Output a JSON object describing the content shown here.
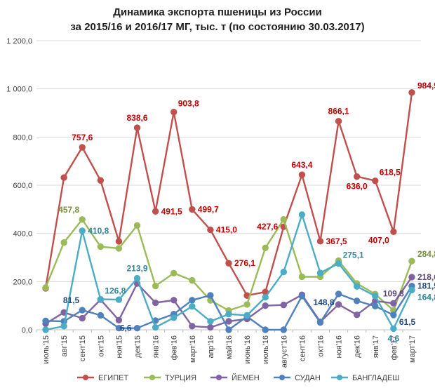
{
  "chart_data": {
    "type": "line",
    "title": "Динамика экспорта пшеницы из России",
    "subtitle": "за 2015/16 и 2016/17 МГ, тыс. т (по состоянию 30.03.2017)",
    "ylim": [
      0,
      1200
    ],
    "yticks": [
      "0,0",
      "200,0",
      "400,0",
      "600,0",
      "800,0",
      "1 000,0",
      "1 200,0"
    ],
    "ytick_values": [
      0,
      200,
      400,
      600,
      800,
      1000,
      1200
    ],
    "categories": [
      "июль'15",
      "авг'15",
      "сент'15",
      "окт'15",
      "ноя'15",
      "дек'15",
      "янв'16",
      "фев'16",
      "март'16",
      "апр'16",
      "май'16",
      "июнь'16",
      "июль'16",
      "август'16",
      "сент'16",
      "окт'16",
      "ноя'16",
      "дек'16",
      "янв'17",
      "фев'17",
      "март'17"
    ],
    "series": [
      {
        "name": "ЕГИПЕТ",
        "color": "#c0504d",
        "values": [
          172,
          632,
          757.6,
          620,
          367,
          838.6,
          491.5,
          903.8,
          499.7,
          415.0,
          276.1,
          142,
          157,
          427.6,
          643.4,
          367.5,
          866.1,
          636.0,
          618.5,
          407.0,
          984.9
        ]
      },
      {
        "name": "ТУРЦИЯ",
        "color": "#9bbb59",
        "values": [
          175,
          362,
          457.8,
          345,
          338,
          433,
          182,
          235,
          205,
          122,
          80,
          105,
          340,
          458,
          220,
          220,
          287,
          192,
          148,
          80,
          284.8
        ]
      },
      {
        "name": "ЙЕМЕН",
        "color": "#8064a2",
        "values": [
          25,
          72,
          48,
          125,
          40,
          192,
          112,
          123,
          15,
          10,
          35,
          45,
          100,
          103,
          145,
          33,
          105,
          62,
          120,
          109.8,
          218.6
        ]
      },
      {
        "name": "СУДАН",
        "color": "#4f81bd",
        "values": [
          37,
          35,
          81.5,
          60,
          6.6,
          6.6,
          38,
          65,
          123,
          143,
          0,
          55,
          0,
          0,
          140,
          30,
          148.8,
          120,
          98,
          61.5,
          181.5
        ]
      },
      {
        "name": "БАНГЛАДЕШ",
        "color": "#4bacc6",
        "values": [
          0,
          15,
          410.8,
          126.8,
          125,
          213.9,
          10,
          50,
          97,
          35,
          65,
          60,
          135,
          240,
          478,
          236,
          275.1,
          180,
          140,
          4.6,
          164.8
        ]
      }
    ],
    "data_labels": [
      {
        "text": "757,6",
        "series": 0,
        "index": 2,
        "pos": "above"
      },
      {
        "text": "838,6",
        "series": 0,
        "index": 5,
        "pos": "above"
      },
      {
        "text": "903,8",
        "series": 0,
        "index": 7,
        "pos": "above-right"
      },
      {
        "text": "491,5",
        "series": 0,
        "index": 6,
        "pos": "right"
      },
      {
        "text": "499,7",
        "series": 0,
        "index": 8,
        "pos": "right"
      },
      {
        "text": "415,0",
        "series": 0,
        "index": 9,
        "pos": "right"
      },
      {
        "text": "276,1",
        "series": 0,
        "index": 10,
        "pos": "right"
      },
      {
        "text": "427,6",
        "series": 0,
        "index": 13,
        "pos": "left"
      },
      {
        "text": "643,4",
        "series": 0,
        "index": 14,
        "pos": "above"
      },
      {
        "text": "367,5",
        "series": 0,
        "index": 15,
        "pos": "right"
      },
      {
        "text": "866,1",
        "series": 0,
        "index": 16,
        "pos": "above"
      },
      {
        "text": "636,0",
        "series": 0,
        "index": 17,
        "pos": "below"
      },
      {
        "text": "618,5",
        "series": 0,
        "index": 18,
        "pos": "above-right"
      },
      {
        "text": "407,0",
        "series": 0,
        "index": 19,
        "pos": "left-below"
      },
      {
        "text": "984,9",
        "series": 0,
        "index": 20,
        "pos": "right-up"
      },
      {
        "text": "457,8",
        "series": 1,
        "index": 2,
        "pos": "above-left"
      },
      {
        "text": "284,8",
        "series": 1,
        "index": 20,
        "pos": "right-up"
      },
      {
        "text": "218,6",
        "series": 2,
        "index": 20,
        "pos": "right"
      },
      {
        "text": "109,8",
        "series": 2,
        "index": 19,
        "pos": "above"
      },
      {
        "text": "81,5",
        "series": 3,
        "index": 2,
        "pos": "above-left"
      },
      {
        "text": "6,6",
        "series": 3,
        "index": 5,
        "pos": "left"
      },
      {
        "text": "148,8",
        "series": 3,
        "index": 16,
        "pos": "left-below"
      },
      {
        "text": "181,5",
        "series": 3,
        "index": 20,
        "pos": "right"
      },
      {
        "text": "61,5",
        "series": 3,
        "index": 19,
        "pos": "right-below"
      },
      {
        "text": "410,8",
        "series": 4,
        "index": 2,
        "pos": "right"
      },
      {
        "text": "126,8",
        "series": 4,
        "index": 3,
        "pos": "above-right"
      },
      {
        "text": "213,9",
        "series": 4,
        "index": 5,
        "pos": "above"
      },
      {
        "text": "275,1",
        "series": 4,
        "index": 16,
        "pos": "above-right"
      },
      {
        "text": "4,6",
        "series": 4,
        "index": 19,
        "pos": "below"
      },
      {
        "text": "164,8",
        "series": 4,
        "index": 20,
        "pos": "right-below"
      }
    ],
    "legend_position": "bottom"
  }
}
